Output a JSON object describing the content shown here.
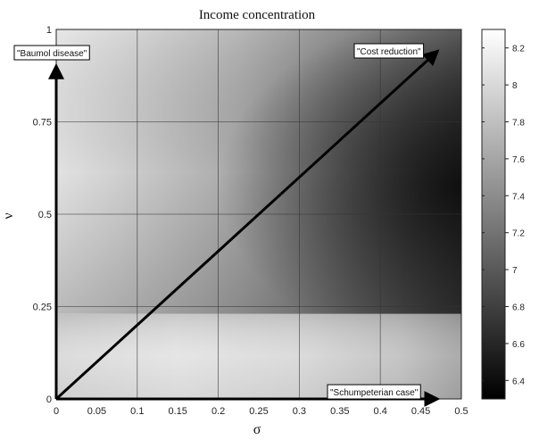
{
  "chart_data": {
    "type": "heatmap",
    "title": "Income concentration",
    "xlabel": "σ",
    "ylabel": "ν",
    "xlim": [
      0,
      0.5
    ],
    "ylim": [
      0,
      1
    ],
    "x_ticks": [
      "0",
      "0.05",
      "0.1",
      "0.15",
      "0.2",
      "0.25",
      "0.3",
      "0.35",
      "0.4",
      "0.45",
      "0.5"
    ],
    "y_ticks": [
      "0",
      "0.25",
      "0.5",
      "0.75",
      "1"
    ],
    "grid": true,
    "colormap": "gray",
    "colorbar": {
      "range": [
        6.3,
        8.3
      ],
      "ticks": [
        "6.4",
        "6.6",
        "6.8",
        "7",
        "7.2",
        "7.4",
        "7.6",
        "7.8",
        "8",
        "8.2"
      ]
    },
    "annotations": [
      {
        "text": "\"Baumol disease\"",
        "arrow_from": [
          0,
          0
        ],
        "arrow_to": [
          0,
          0.9
        ]
      },
      {
        "text": "\"Cost reduction\"",
        "arrow_from": [
          0,
          0
        ],
        "arrow_to": [
          0.47,
          0.94
        ]
      },
      {
        "text": "\"Schumpeterian case\"",
        "arrow_from": [
          0,
          0
        ],
        "arrow_to": [
          0.47,
          0
        ]
      }
    ]
  }
}
